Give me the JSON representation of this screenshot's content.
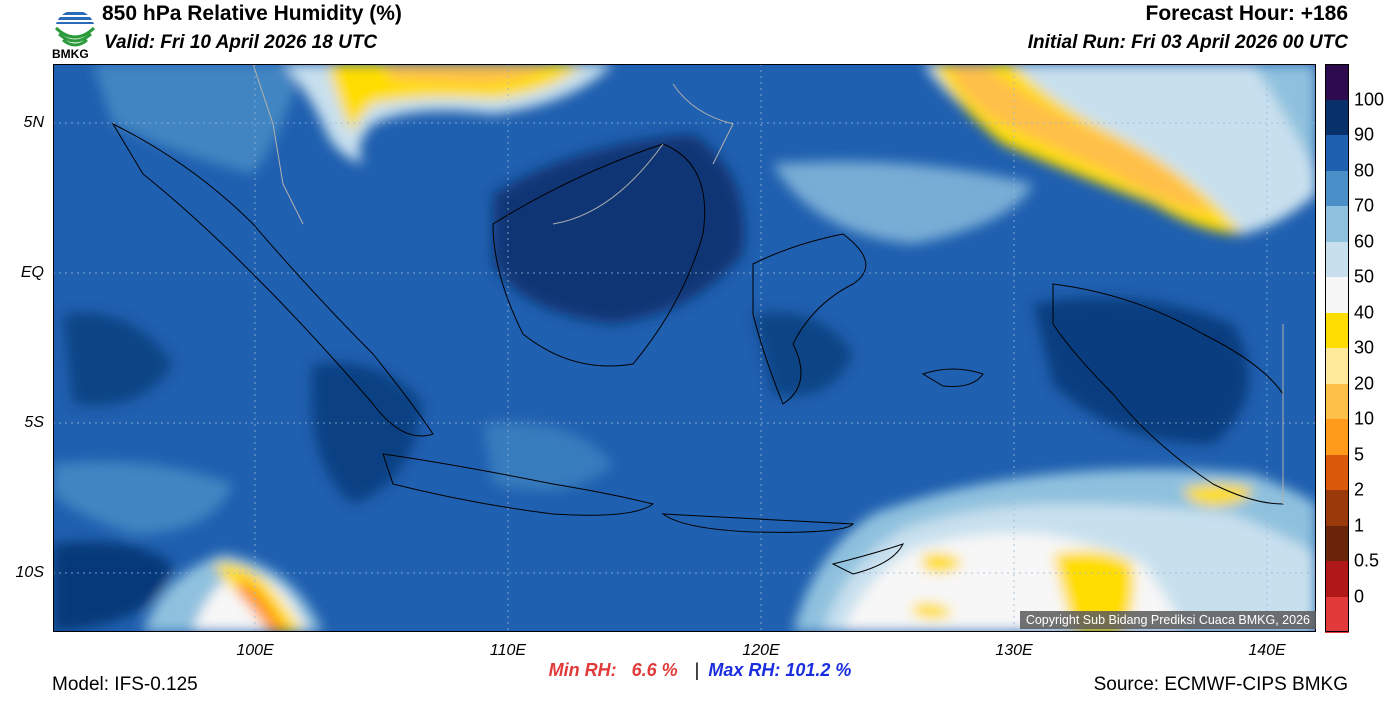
{
  "header": {
    "title": "850 hPa Relative Humidity (%)",
    "valid": "Valid: Fri 10 April 2026 18 UTC",
    "forecast_hour": "Forecast Hour: +186",
    "initial_run": "Initial Run: Fri 03 April 2026 00 UTC"
  },
  "logo": {
    "text": "BMKG"
  },
  "axes": {
    "lat_labels": [
      "5N",
      "EQ",
      "5S",
      "10S"
    ],
    "lon_labels": [
      "100E",
      "110E",
      "120E",
      "130E",
      "140E"
    ]
  },
  "colorbar": {
    "labels": [
      "100",
      "90",
      "80",
      "70",
      "60",
      "50",
      "40",
      "30",
      "20",
      "10",
      "5",
      "2",
      "1",
      "0.5",
      "0"
    ],
    "colors": [
      "#2e0a4e",
      "#08306b",
      "#2060b0",
      "#4a8fc7",
      "#8fc1de",
      "#c8e0ee",
      "#f7f7f7",
      "#ffdd00",
      "#ffe99a",
      "#ffc04a",
      "#ff9a1a",
      "#d85a0a",
      "#9a3a0a",
      "#6a2408",
      "#b01818",
      "#e23a3a"
    ]
  },
  "stats": {
    "min_label": "Min RH:",
    "min_value": "6.6 %",
    "separator": "|",
    "max_label": "Max RH:",
    "max_value": "101.2 %",
    "min_color": "#e03a3a",
    "max_color": "#1a2ee0"
  },
  "footer": {
    "model": "Model: IFS-0.125",
    "source": "Source: ECMWF-CIPS BMKG",
    "copyright": "Copyright Sub Bidang Prediksi Cuaca BMKG, 2026"
  }
}
